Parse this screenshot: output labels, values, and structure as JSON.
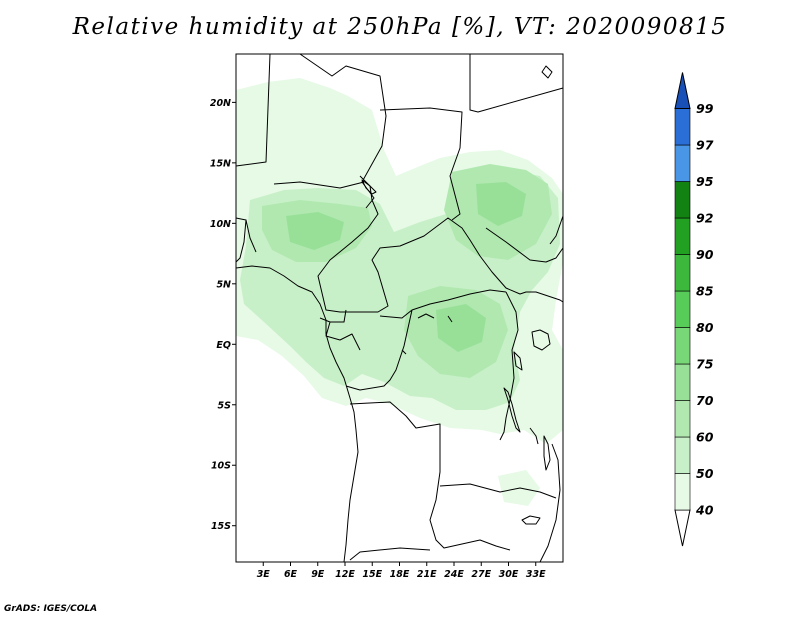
{
  "title": "Relative humidity at 250hPa [%], VT: 2020090815",
  "credit": "GrADS: IGES/COLA",
  "map": {
    "lon_range": [
      0,
      36
    ],
    "lat_range": [
      -18,
      24
    ],
    "lat_ticks": [
      {
        "value": 20,
        "label": "20N"
      },
      {
        "value": 15,
        "label": "15N"
      },
      {
        "value": 10,
        "label": "10N"
      },
      {
        "value": 5,
        "label": "5N"
      },
      {
        "value": 0,
        "label": "EQ"
      },
      {
        "value": -5,
        "label": "5S"
      },
      {
        "value": -10,
        "label": "10S"
      },
      {
        "value": -15,
        "label": "15S"
      }
    ],
    "lon_ticks": [
      {
        "value": 3,
        "label": "3E"
      },
      {
        "value": 6,
        "label": "6E"
      },
      {
        "value": 9,
        "label": "9E"
      },
      {
        "value": 12,
        "label": "12E"
      },
      {
        "value": 15,
        "label": "15E"
      },
      {
        "value": 18,
        "label": "18E"
      },
      {
        "value": 21,
        "label": "21E"
      },
      {
        "value": 24,
        "label": "24E"
      },
      {
        "value": 27,
        "label": "27E"
      },
      {
        "value": 30,
        "label": "30E"
      },
      {
        "value": 33,
        "label": "33E"
      }
    ]
  },
  "colorbar": {
    "levels": [
      "40",
      "50",
      "60",
      "70",
      "75",
      "80",
      "85",
      "90",
      "92",
      "95",
      "97",
      "99"
    ],
    "colors": [
      "#ffffff",
      "#e6fae6",
      "#c8f0c8",
      "#b0e8b0",
      "#98e098",
      "#78d878",
      "#58cc58",
      "#3cb93c",
      "#22a022",
      "#128212",
      "#4a96e6",
      "#2a6ed8",
      "#1850b8"
    ]
  }
}
